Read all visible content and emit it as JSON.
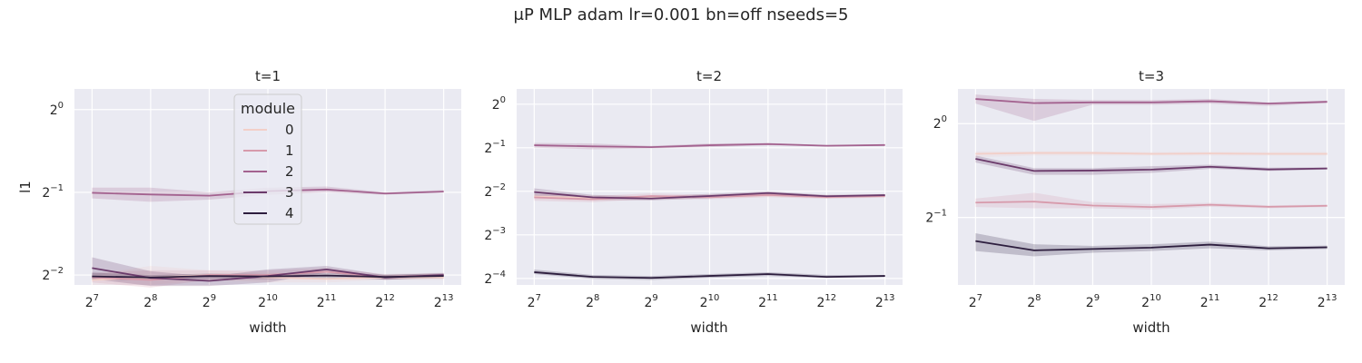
{
  "suptitle": "μP MLP adam lr=0.001 bn=off nseeds=5",
  "colors": {
    "axes_bg": "#eaeaf2",
    "grid": "#ffffff",
    "module_0": "#f2cfc8",
    "module_1": "#d79aab",
    "module_2": "#a3628f",
    "module_3": "#6b3b6b",
    "module_4": "#2d1e3e"
  },
  "legend": {
    "title": "module",
    "labels": [
      "0",
      "1",
      "2",
      "3",
      "4"
    ],
    "location": "upper-center of first panel"
  },
  "chart_data": [
    {
      "type": "line",
      "title": "t=1",
      "xlabel": "width",
      "ylabel": "l1",
      "x_scale": "log2",
      "y_scale": "log2",
      "xlim": [
        6.7,
        13.3
      ],
      "ylim": [
        -2.12,
        0.25
      ],
      "x_tick_exponents": [
        7,
        8,
        9,
        10,
        11,
        12,
        13
      ],
      "y_tick_exponents": [
        0,
        -1,
        -2
      ],
      "x": [
        128,
        256,
        512,
        1024,
        2048,
        4096,
        8192
      ],
      "series": [
        {
          "name": "0",
          "values": [
            0.24,
            0.245,
            0.25,
            0.245,
            0.242,
            0.245,
            0.245
          ],
          "band": [
            [
              0.23,
              0.25
            ],
            [
              0.23,
              0.27
            ],
            [
              0.24,
              0.26
            ],
            [
              0.235,
              0.255
            ],
            [
              0.235,
              0.25
            ],
            [
              0.24,
              0.25
            ],
            [
              0.24,
              0.25
            ]
          ]
        },
        {
          "name": "1",
          "values": [
            0.245,
            0.24,
            0.25,
            0.25,
            0.257,
            0.246,
            0.25
          ],
          "band": [
            [
              0.235,
              0.255
            ],
            [
              0.225,
              0.26
            ],
            [
              0.24,
              0.26
            ],
            [
              0.24,
              0.26
            ],
            [
              0.25,
              0.265
            ],
            [
              0.24,
              0.252
            ],
            [
              0.245,
              0.255
            ]
          ]
        },
        {
          "name": "2",
          "values": [
            0.498,
            0.491,
            0.486,
            0.505,
            0.512,
            0.495,
            0.503
          ],
          "band": [
            [
              0.475,
              0.52
            ],
            [
              0.462,
              0.52
            ],
            [
              0.47,
              0.5
            ],
            [
              0.49,
              0.52
            ],
            [
              0.5,
              0.525
            ],
            [
              0.49,
              0.5
            ],
            [
              0.5,
              0.51
            ]
          ]
        },
        {
          "name": "3",
          "values": [
            0.265,
            0.244,
            0.238,
            0.248,
            0.262,
            0.245,
            0.25
          ],
          "band": [
            [
              0.242,
              0.29
            ],
            [
              0.228,
              0.258
            ],
            [
              0.228,
              0.247
            ],
            [
              0.235,
              0.262
            ],
            [
              0.255,
              0.27
            ],
            [
              0.24,
              0.25
            ],
            [
              0.246,
              0.254
            ]
          ]
        },
        {
          "name": "4",
          "values": [
            0.247,
            0.245,
            0.248,
            0.247,
            0.249,
            0.246,
            0.248
          ],
          "band": [
            [
              0.24,
              0.255
            ],
            [
              0.24,
              0.25
            ],
            [
              0.243,
              0.253
            ],
            [
              0.242,
              0.252
            ],
            [
              0.244,
              0.254
            ],
            [
              0.241,
              0.251
            ],
            [
              0.243,
              0.253
            ]
          ]
        }
      ]
    },
    {
      "type": "line",
      "title": "t=2",
      "xlabel": "width",
      "ylabel": "",
      "x_scale": "log2",
      "y_scale": "log2",
      "xlim": [
        6.7,
        13.3
      ],
      "ylim": [
        -4.15,
        0.35
      ],
      "x_tick_exponents": [
        7,
        8,
        9,
        10,
        11,
        12,
        13
      ],
      "y_tick_exponents": [
        0,
        -1,
        -2,
        -3,
        -4
      ],
      "x": [
        128,
        256,
        512,
        1024,
        2048,
        4096,
        8192
      ],
      "series": [
        {
          "name": "0",
          "values": [
            0.23,
            0.225,
            0.225,
            0.23,
            0.235,
            0.23,
            0.232
          ],
          "band": [
            [
              0.22,
              0.24
            ],
            [
              0.215,
              0.235
            ],
            [
              0.218,
              0.232
            ],
            [
              0.222,
              0.238
            ],
            [
              0.228,
              0.242
            ],
            [
              0.224,
              0.236
            ],
            [
              0.226,
              0.238
            ]
          ]
        },
        {
          "name": "1",
          "values": [
            0.227,
            0.22,
            0.232,
            0.228,
            0.236,
            0.228,
            0.232
          ],
          "band": [
            [
              0.215,
              0.24
            ],
            [
              0.21,
              0.232
            ],
            [
              0.222,
              0.242
            ],
            [
              0.22,
              0.236
            ],
            [
              0.228,
              0.244
            ],
            [
              0.222,
              0.234
            ],
            [
              0.226,
              0.238
            ]
          ]
        },
        {
          "name": "2",
          "values": [
            0.52,
            0.511,
            0.505,
            0.52,
            0.53,
            0.516,
            0.522
          ],
          "band": [
            [
              0.5,
              0.54
            ],
            [
              0.488,
              0.535
            ],
            [
              0.495,
              0.515
            ],
            [
              0.505,
              0.535
            ],
            [
              0.52,
              0.54
            ],
            [
              0.51,
              0.522
            ],
            [
              0.517,
              0.527
            ]
          ]
        },
        {
          "name": "3",
          "values": [
            0.247,
            0.227,
            0.223,
            0.232,
            0.243,
            0.231,
            0.235
          ],
          "band": [
            [
              0.232,
              0.262
            ],
            [
              0.218,
              0.236
            ],
            [
              0.216,
              0.23
            ],
            [
              0.224,
              0.24
            ],
            [
              0.236,
              0.25
            ],
            [
              0.226,
              0.236
            ],
            [
              0.231,
              0.239
            ]
          ]
        },
        {
          "name": "4",
          "values": [
            0.069,
            0.064,
            0.063,
            0.065,
            0.067,
            0.064,
            0.065
          ],
          "band": [
            [
              0.067,
              0.072
            ],
            [
              0.062,
              0.066
            ],
            [
              0.061,
              0.065
            ],
            [
              0.063,
              0.067
            ],
            [
              0.065,
              0.069
            ],
            [
              0.063,
              0.066
            ],
            [
              0.064,
              0.066
            ]
          ]
        }
      ]
    },
    {
      "type": "line",
      "title": "t=3",
      "xlabel": "width",
      "ylabel": "",
      "x_scale": "log2",
      "y_scale": "log2",
      "xlim": [
        6.7,
        13.3
      ],
      "ylim": [
        -1.72,
        0.37
      ],
      "x_tick_exponents": [
        7,
        8,
        9,
        10,
        11,
        12,
        13
      ],
      "y_tick_exponents": [
        0,
        -1
      ],
      "x": [
        128,
        256,
        512,
        1024,
        2048,
        4096,
        8192
      ],
      "series": [
        {
          "name": "0",
          "values": [
            0.8,
            0.805,
            0.805,
            0.8,
            0.802,
            0.8,
            0.8
          ],
          "band": [
            [
              0.78,
              0.815
            ],
            [
              0.79,
              0.815
            ],
            [
              0.79,
              0.815
            ],
            [
              0.79,
              0.81
            ],
            [
              0.79,
              0.812
            ],
            [
              0.79,
              0.81
            ],
            [
              0.79,
              0.81
            ]
          ]
        },
        {
          "name": "1",
          "values": [
            0.558,
            0.562,
            0.546,
            0.54,
            0.549,
            0.541,
            0.545
          ],
          "band": [
            [
              0.54,
              0.575
            ],
            [
              0.535,
              0.6
            ],
            [
              0.535,
              0.56
            ],
            [
              0.53,
              0.552
            ],
            [
              0.541,
              0.557
            ],
            [
              0.535,
              0.547
            ],
            [
              0.54,
              0.55
            ]
          ]
        },
        {
          "name": "2",
          "values": [
            1.2,
            1.164,
            1.17,
            1.17,
            1.18,
            1.16,
            1.175
          ],
          "band": [
            [
              1.16,
              1.24
            ],
            [
              1.02,
              1.2
            ],
            [
              1.15,
              1.19
            ],
            [
              1.15,
              1.19
            ],
            [
              1.16,
              1.2
            ],
            [
              1.14,
              1.17
            ],
            [
              1.165,
              1.185
            ]
          ]
        },
        {
          "name": "3",
          "values": [
            0.771,
            0.705,
            0.707,
            0.712,
            0.727,
            0.713,
            0.718
          ],
          "band": [
            [
              0.75,
              0.79
            ],
            [
              0.685,
              0.72
            ],
            [
              0.685,
              0.72
            ],
            [
              0.695,
              0.73
            ],
            [
              0.716,
              0.738
            ],
            [
              0.705,
              0.722
            ],
            [
              0.712,
              0.724
            ]
          ]
        },
        {
          "name": "4",
          "values": [
            0.42,
            0.392,
            0.396,
            0.4,
            0.409,
            0.398,
            0.401
          ],
          "band": [
            [
              0.39,
              0.445
            ],
            [
              0.375,
              0.41
            ],
            [
              0.385,
              0.405
            ],
            [
              0.39,
              0.41
            ],
            [
              0.398,
              0.418
            ],
            [
              0.392,
              0.404
            ],
            [
              0.396,
              0.406
            ]
          ]
        }
      ]
    }
  ]
}
